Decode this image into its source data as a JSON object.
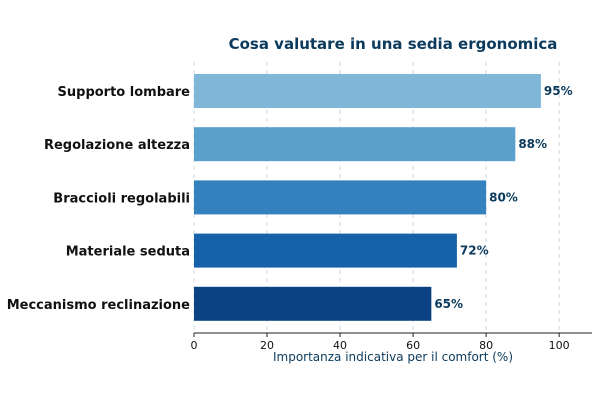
{
  "colors": {
    "title": "#0b3a5c",
    "value_label": "#0b3a5c",
    "axis_label": "#0b3a5c",
    "bars": [
      "#80b7d9",
      "#5aa0cd",
      "#3381bd",
      "#1661a9",
      "#0a4283"
    ]
  },
  "chart_data": {
    "type": "bar",
    "orientation": "horizontal",
    "title": "Cosa valutare in una sedia ergonomica",
    "xlabel": "Importanza indicativa per il comfort (%)",
    "ylabel": "",
    "categories": [
      "Supporto lombare",
      "Regolazione altezza",
      "Braccioli regolabili",
      "Materiale seduta",
      "Meccanismo reclinazione"
    ],
    "values": [
      95,
      88,
      80,
      72,
      65
    ],
    "value_labels": [
      "95%",
      "88%",
      "80%",
      "72%",
      "65%"
    ],
    "xlim": [
      0,
      109
    ],
    "xticks": [
      0,
      20,
      40,
      60,
      80,
      100
    ],
    "xtick_labels": [
      "0",
      "20",
      "40",
      "60",
      "80",
      "100"
    ],
    "grid": "vertical dashed",
    "legend": "none"
  }
}
